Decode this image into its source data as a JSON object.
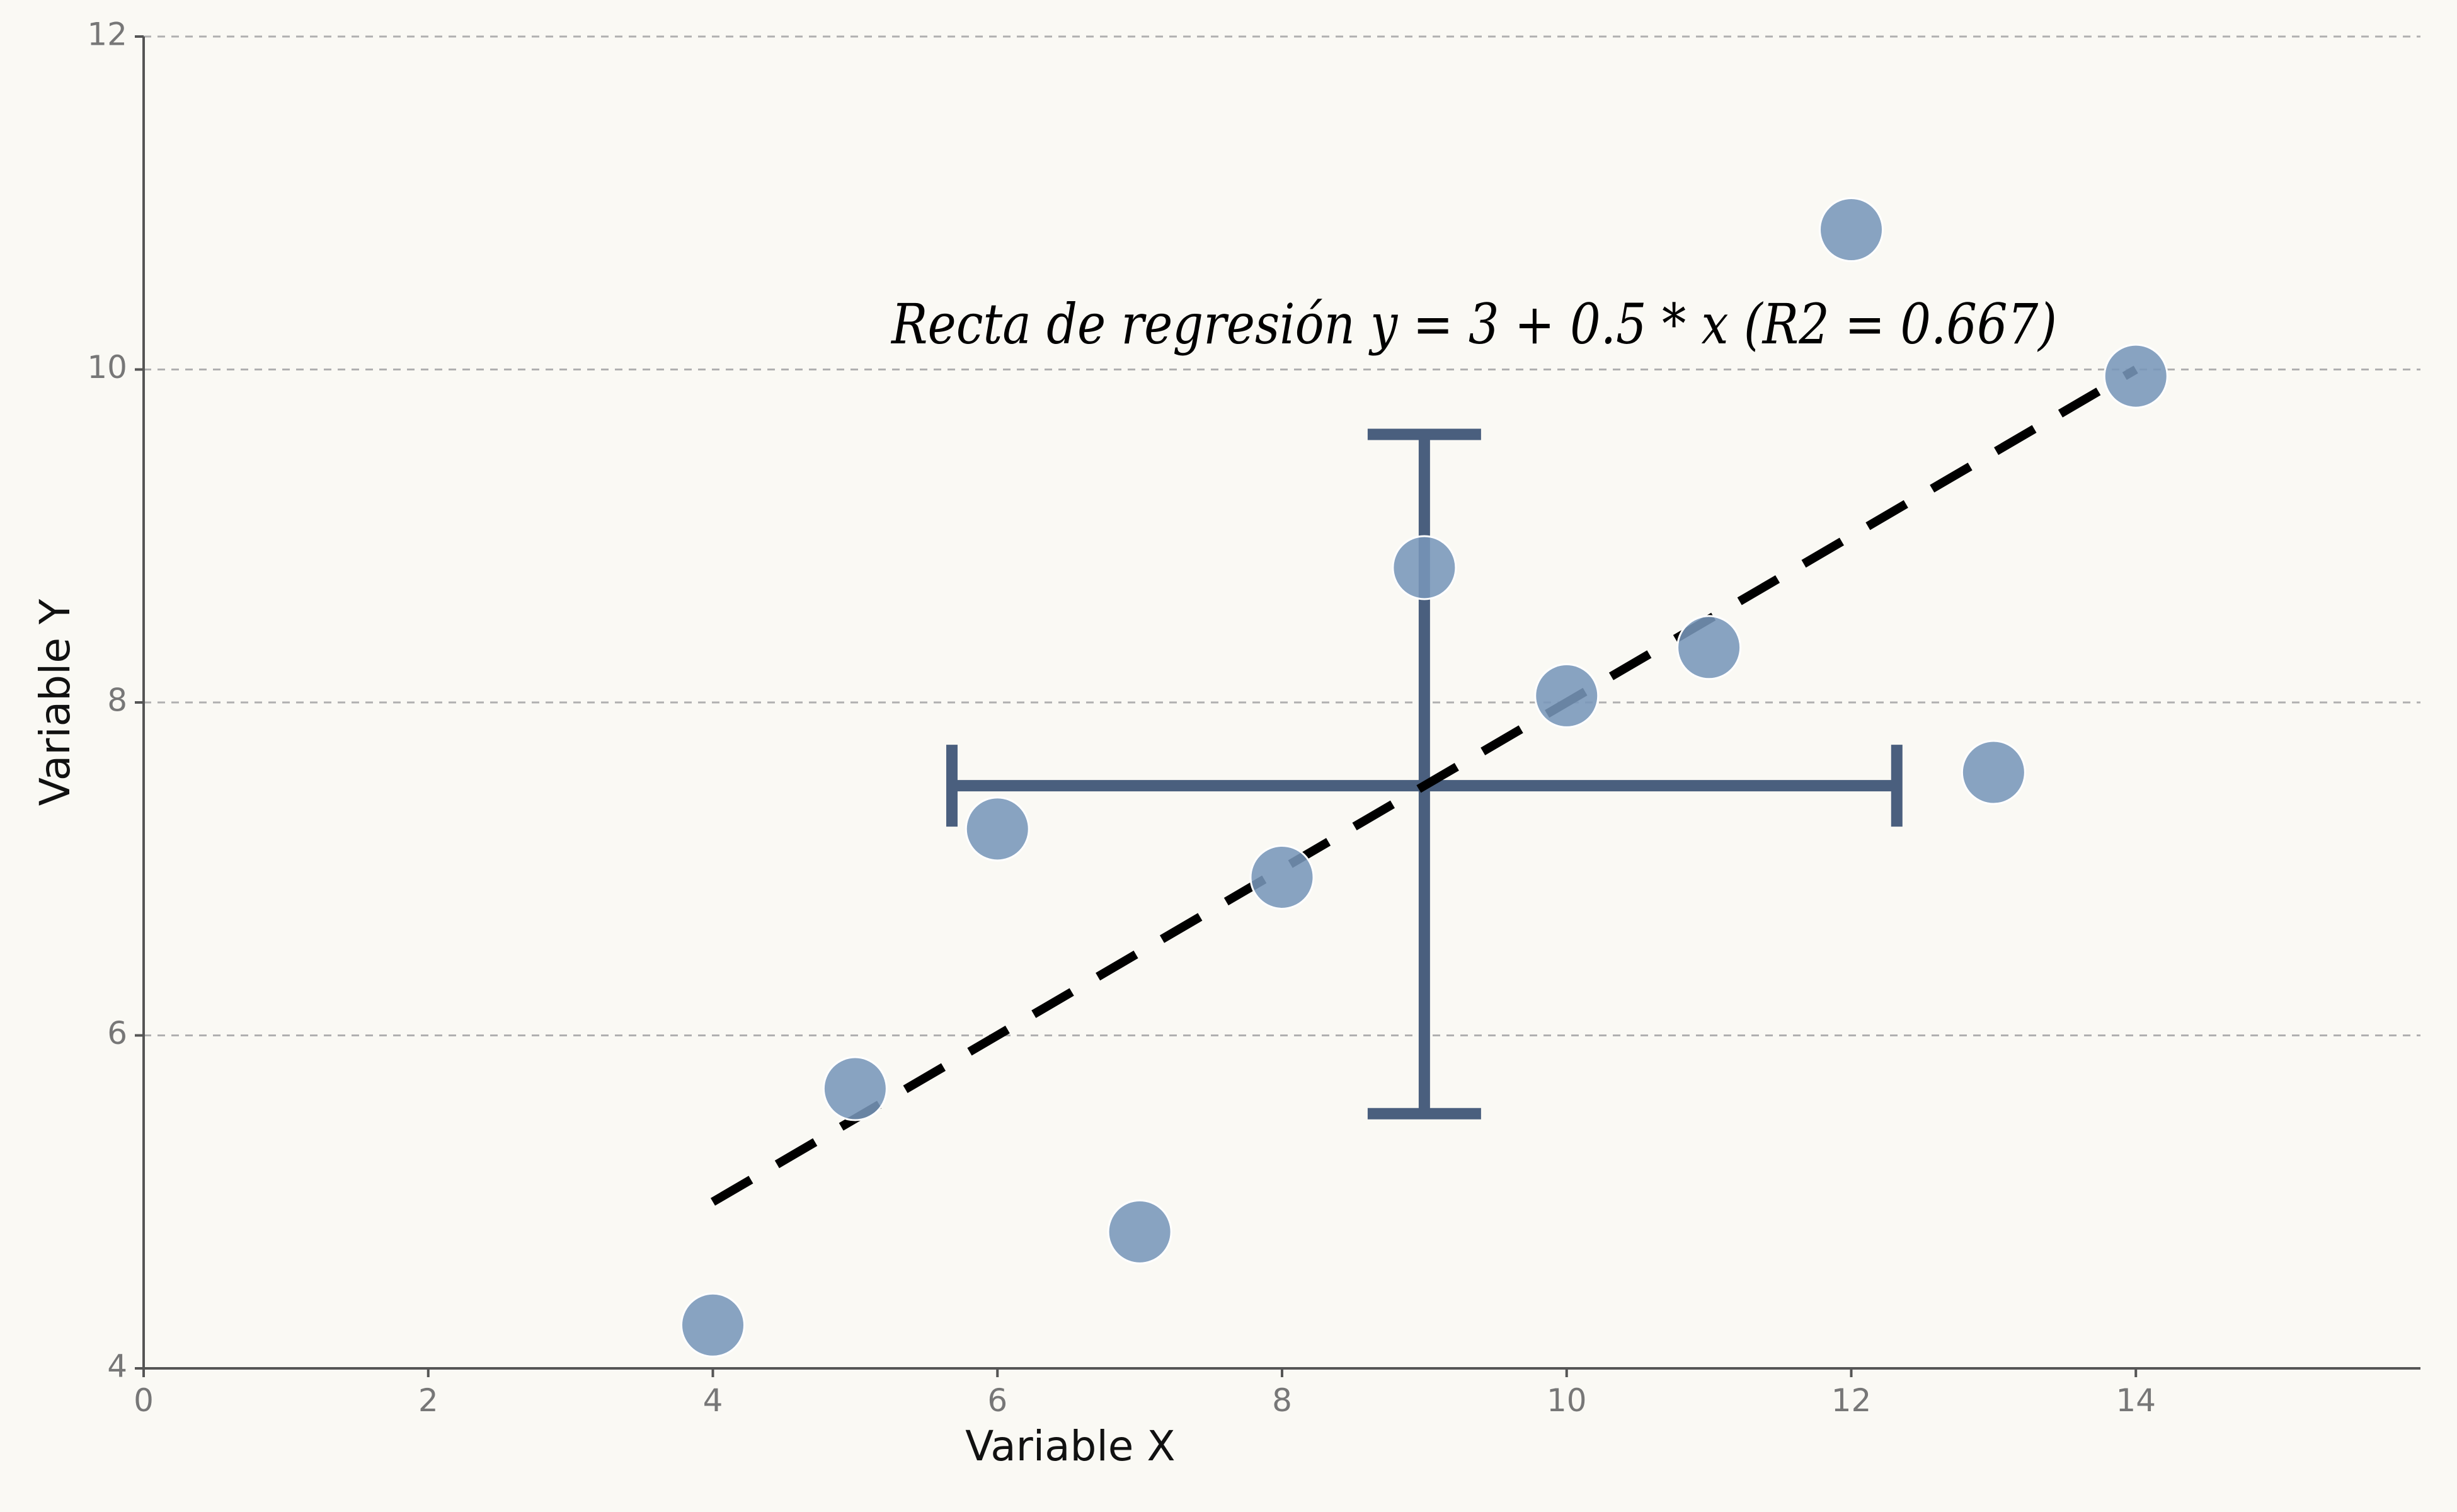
{
  "chart_data": {
    "type": "scatter",
    "title": "",
    "xlabel": "Variable X",
    "ylabel": "Variable Y",
    "xlim": [
      0,
      16
    ],
    "ylim": [
      4,
      12
    ],
    "xticks": [
      "0",
      "2",
      "4",
      "6",
      "8",
      "10",
      "12",
      "14"
    ],
    "yticks": [
      "4",
      "6",
      "8",
      "10",
      "12"
    ],
    "grid": "horizontal dashed",
    "points": [
      {
        "x": 4,
        "y": 4.26
      },
      {
        "x": 5,
        "y": 5.68
      },
      {
        "x": 6,
        "y": 7.24
      },
      {
        "x": 7,
        "y": 4.82
      },
      {
        "x": 8,
        "y": 6.95
      },
      {
        "x": 9,
        "y": 8.81
      },
      {
        "x": 10,
        "y": 8.04
      },
      {
        "x": 11,
        "y": 8.33
      },
      {
        "x": 12,
        "y": 10.84
      },
      {
        "x": 13,
        "y": 7.58
      },
      {
        "x": 14,
        "y": 9.96
      }
    ],
    "regression_line": {
      "intercept": 3,
      "slope": 0.5,
      "x_from": 4,
      "x_to": 14
    },
    "error_cross": {
      "center": {
        "x": 9,
        "y": 7.5
      },
      "x_error": [
        5.68,
        12.32
      ],
      "y_error": [
        5.53,
        9.61
      ]
    },
    "annotation": "Recta de regresión y = 3 + 0.5 * x (R2 = 0.667)",
    "colors": {
      "background": "#faf9f4",
      "points": "#7896b9",
      "error_bars": "#4a5f7e",
      "regression_line": "#000000",
      "grid": "#b0b0b0",
      "axis": "#555555"
    }
  }
}
